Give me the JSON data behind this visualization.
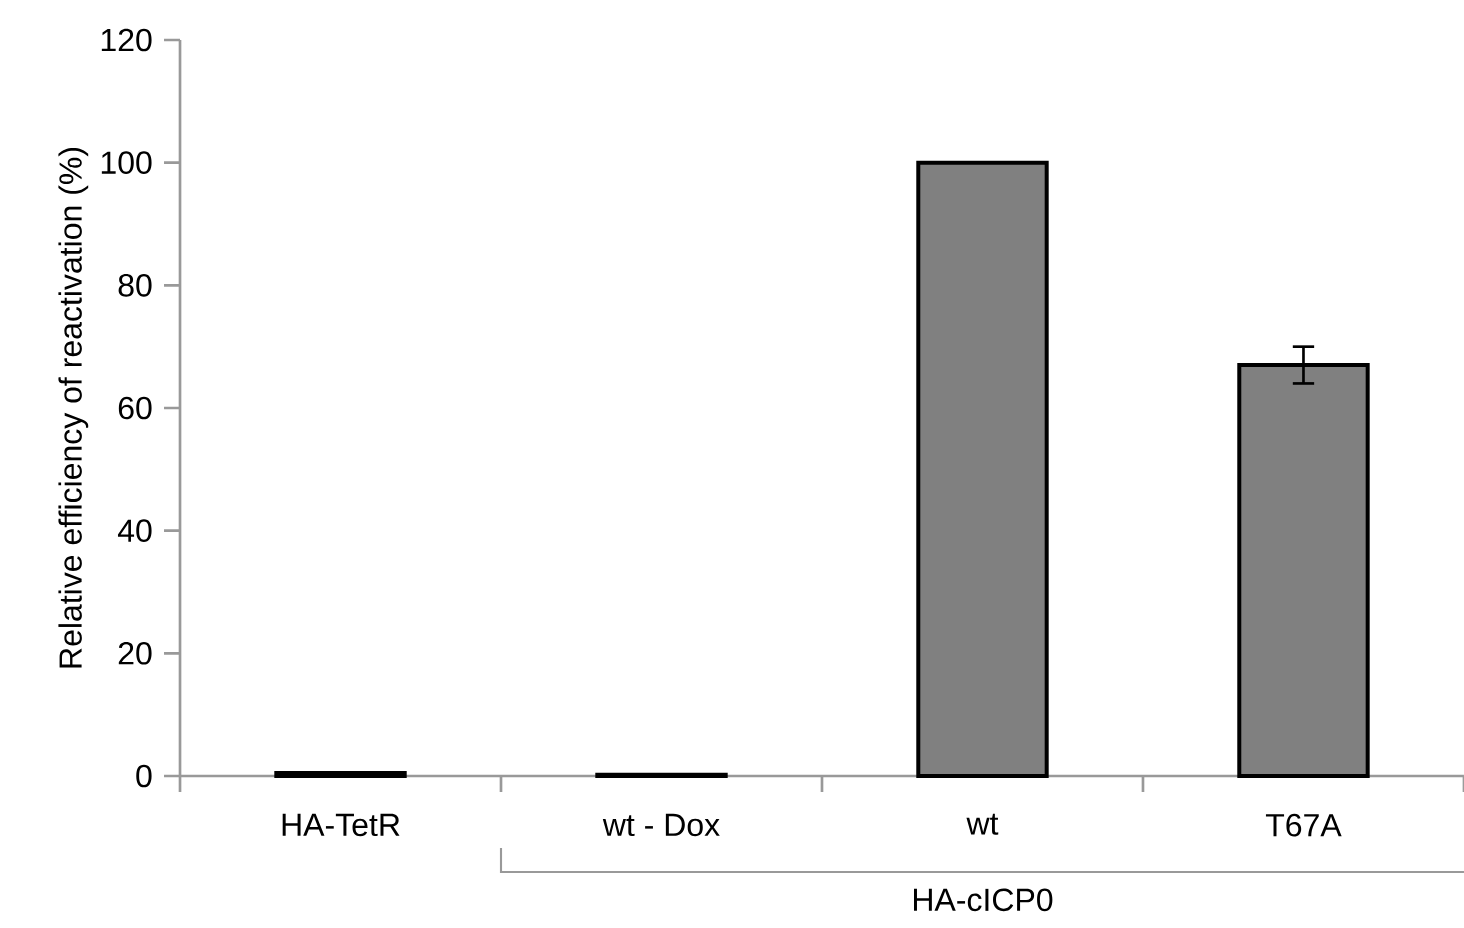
{
  "chart_data": {
    "type": "bar",
    "ylabel": "Relative efficiency of reactivation (%)",
    "categories": [
      "HA-TetR",
      "wt - Dox",
      "wt",
      "T67A"
    ],
    "values": [
      0.5,
      0.2,
      100,
      67
    ],
    "errors": [
      null,
      null,
      null,
      3
    ],
    "color": "#808080",
    "ylim": [
      0,
      120
    ],
    "yticks": [
      0,
      20,
      40,
      60,
      80,
      100,
      120
    ],
    "annotations": [
      "HA-cICP0"
    ]
  }
}
